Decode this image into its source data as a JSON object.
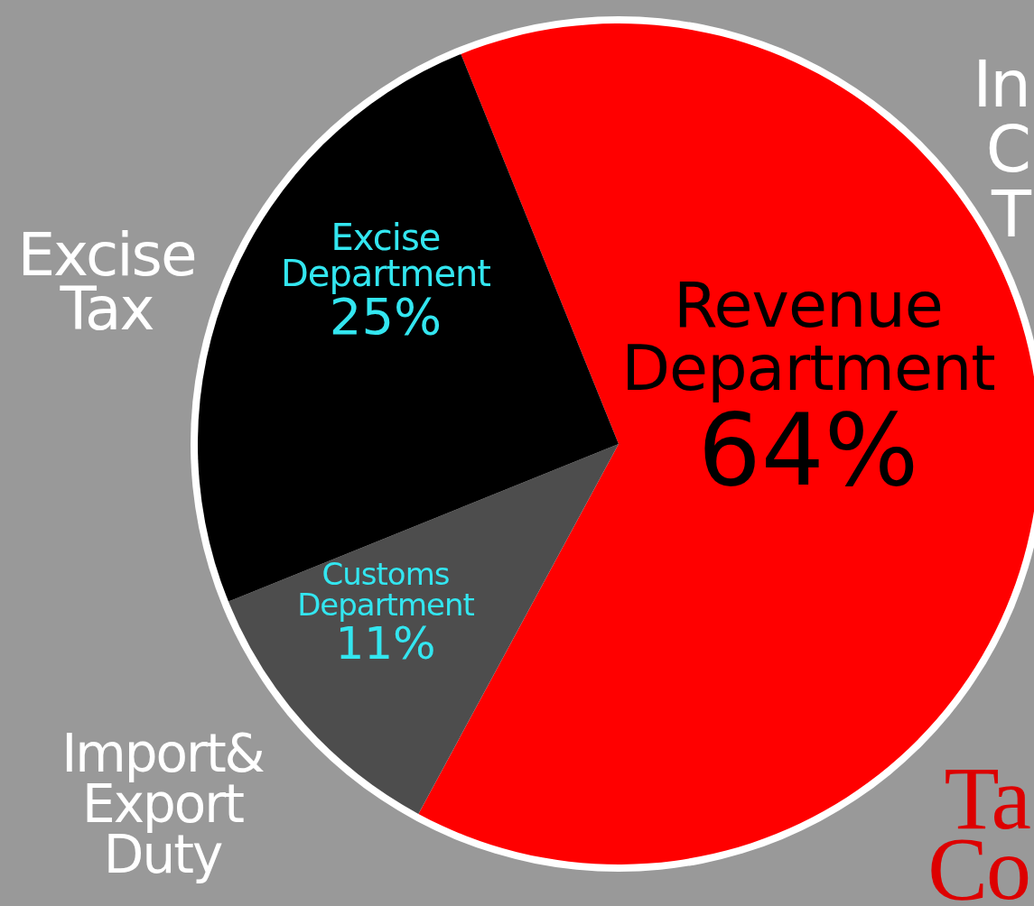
{
  "chart_data": {
    "type": "pie",
    "categories": [
      "Revenue Department",
      "Customs Department",
      "Excise Department"
    ],
    "values": [
      64,
      11,
      25
    ],
    "colors": [
      "#ff0000",
      "#4d4d4d",
      "#000000"
    ],
    "value_labels": [
      "64%",
      "11%",
      "25%"
    ],
    "annotations": [
      "In\nC\nT",
      "Excise\nTax",
      "Import&\nExport\nDuty",
      "Ta\nCo"
    ]
  }
}
